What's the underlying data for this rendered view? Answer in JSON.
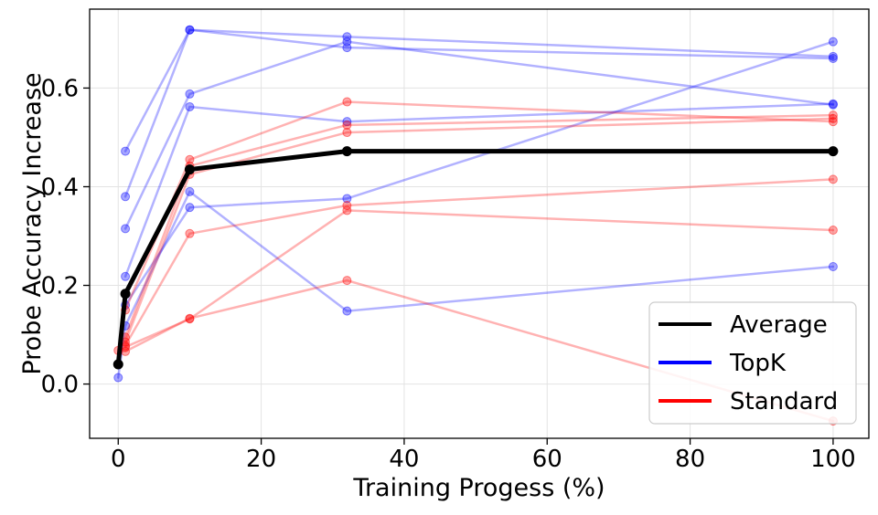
{
  "chart_data": {
    "type": "line",
    "title": "",
    "xlabel": "Training Progess (%)",
    "ylabel": "Probe Accuracy Increase",
    "x": [
      0,
      1,
      10,
      32,
      100
    ],
    "xlim": [
      -4,
      105
    ],
    "ylim": [
      -0.11,
      0.76
    ],
    "xticks": [
      0,
      20,
      40,
      60,
      80,
      100
    ],
    "yticks": [
      0.0,
      0.2,
      0.4,
      0.6
    ],
    "xtick_labels": [
      "0",
      "20",
      "40",
      "60",
      "80",
      "100"
    ],
    "ytick_labels": [
      "0.0",
      "0.2",
      "0.4",
      "0.6"
    ],
    "grid": true,
    "legend_position": "bottom-right",
    "colors": {
      "average": "#000000",
      "topk": "#0000ff",
      "standard": "#ff0000"
    },
    "legend": [
      {
        "label": "Average",
        "key": "average"
      },
      {
        "label": "TopK",
        "key": "topk"
      },
      {
        "label": "Standard",
        "key": "standard"
      }
    ],
    "series": [
      {
        "name": "TopK",
        "group": "topk",
        "x": [
          1,
          10,
          32,
          100
        ],
        "values": [
          0.472,
          0.718,
          0.704,
          0.664
        ]
      },
      {
        "name": "TopK",
        "group": "topk",
        "x": [
          1,
          10,
          32,
          100
        ],
        "values": [
          0.38,
          0.718,
          0.682,
          0.66
        ]
      },
      {
        "name": "TopK",
        "group": "topk",
        "x": [
          1,
          10,
          32,
          100
        ],
        "values": [
          0.315,
          0.588,
          0.694,
          0.566
        ]
      },
      {
        "name": "TopK",
        "group": "topk",
        "x": [
          1,
          10,
          32,
          100
        ],
        "values": [
          0.218,
          0.562,
          0.532,
          0.568
        ]
      },
      {
        "name": "TopK",
        "group": "topk",
        "x": [
          1,
          10,
          32,
          100
        ],
        "values": [
          0.16,
          0.358,
          0.376,
          0.694
        ]
      },
      {
        "name": "TopK",
        "group": "topk",
        "x": [
          0,
          1,
          10,
          32,
          100
        ],
        "values": [
          0.013,
          0.118,
          0.39,
          0.148,
          0.238
        ]
      },
      {
        "name": "Standard",
        "group": "standard",
        "x": [
          1,
          10,
          32,
          100
        ],
        "values": [
          0.15,
          0.455,
          0.572,
          0.532
        ]
      },
      {
        "name": "Standard",
        "group": "standard",
        "x": [
          1,
          10,
          32,
          100
        ],
        "values": [
          0.095,
          0.442,
          0.525,
          0.545
        ]
      },
      {
        "name": "Standard",
        "group": "standard",
        "x": [
          1,
          10,
          32,
          100
        ],
        "values": [
          0.085,
          0.425,
          0.51,
          0.538
        ]
      },
      {
        "name": "Standard",
        "group": "standard",
        "x": [
          1,
          10,
          32,
          100
        ],
        "values": [
          0.078,
          0.305,
          0.362,
          0.415
        ]
      },
      {
        "name": "Standard",
        "group": "standard",
        "x": [
          1,
          10,
          32,
          100
        ],
        "values": [
          0.075,
          0.132,
          0.352,
          0.312
        ]
      },
      {
        "name": "Standard",
        "group": "standard",
        "x": [
          0,
          1,
          10,
          32,
          100
        ],
        "values": [
          0.068,
          0.066,
          0.133,
          0.21,
          -0.075
        ]
      },
      {
        "name": "Average",
        "group": "average",
        "x": [
          0,
          1,
          10,
          32,
          100
        ],
        "values": [
          0.04,
          0.183,
          0.435,
          0.472,
          0.472
        ]
      }
    ]
  }
}
